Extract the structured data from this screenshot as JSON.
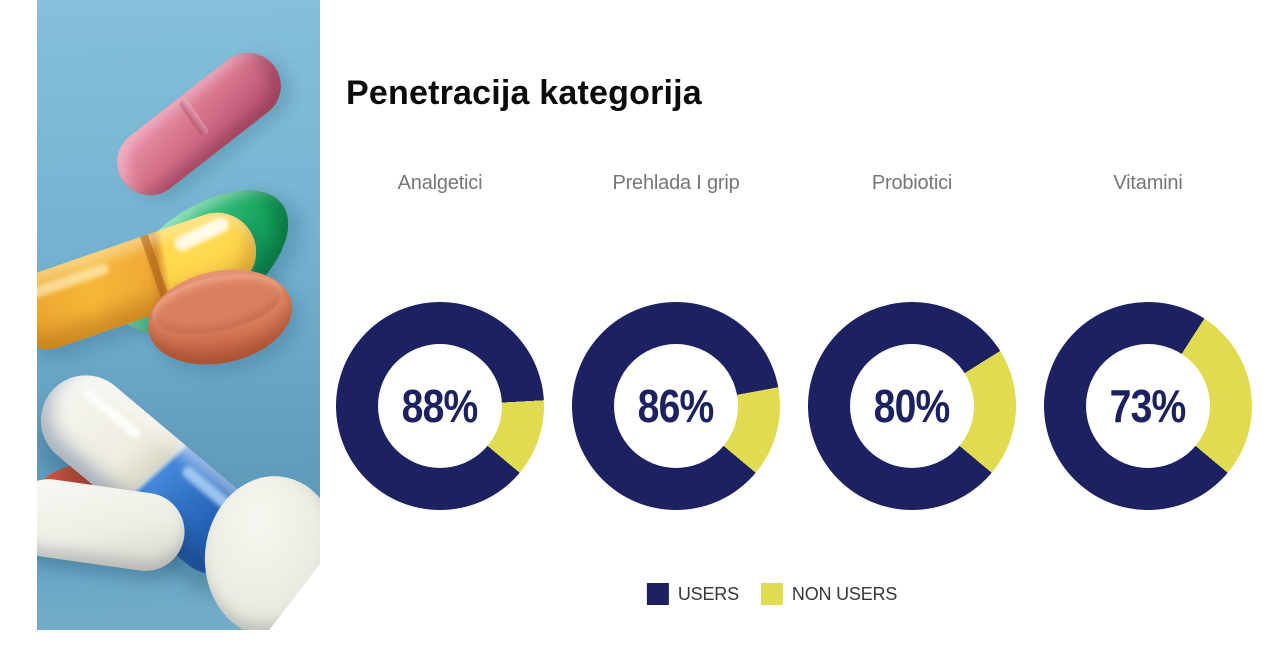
{
  "title": "Penetracija kategorija",
  "chart_data": {
    "type": "pie",
    "subtype": "donut",
    "title": "Penetracija kategorija",
    "categories": [
      "Analgetici",
      "Prehlada I grip",
      "Probiotici",
      "Vitamini"
    ],
    "series": [
      {
        "name": "USERS",
        "values": [
          88,
          86,
          80,
          73
        ],
        "color": "#1B2161"
      },
      {
        "name": "NON USERS",
        "values": [
          12,
          14,
          20,
          27
        ],
        "color": "#E1DB51"
      }
    ],
    "donuts": [
      {
        "label": "Analgetici",
        "users_pct": 88,
        "non_users_pct": 12,
        "value_label": "88%"
      },
      {
        "label": "Prehlada I grip",
        "users_pct": 86,
        "non_users_pct": 14,
        "value_label": "86%"
      },
      {
        "label": "Probiotici",
        "users_pct": 80,
        "non_users_pct": 20,
        "value_label": "80%"
      },
      {
        "label": "Vitamini",
        "users_pct": 73,
        "non_users_pct": 27,
        "value_label": "73%"
      }
    ],
    "legend": [
      {
        "label": "USERS",
        "color": "#1B2161"
      },
      {
        "label": "NON USERS",
        "color": "#E1DB51"
      }
    ],
    "legend_position": "bottom",
    "start_angle_deg": 130,
    "hole_ratio": 0.59,
    "grid": false
  }
}
